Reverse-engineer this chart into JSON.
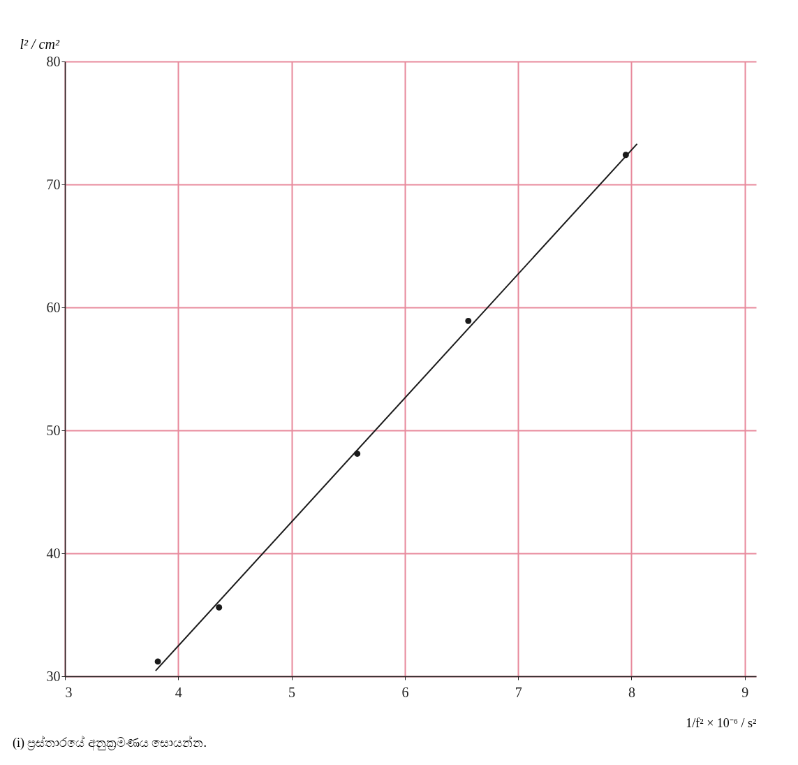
{
  "chart_data": {
    "type": "scatter",
    "xlabel": "1/f² × 10⁻⁶ / s²",
    "ylabel": "l² / cm²",
    "annotations": [
      "(i)  ප්‍රස්තාරයේ අනුක්‍රමණය සොයන්න."
    ],
    "xlim": [
      3,
      9.1
    ],
    "ylim": [
      30,
      80
    ],
    "xticks": [
      3,
      4,
      5,
      6,
      7,
      8,
      9
    ],
    "yticks": [
      30,
      40,
      50,
      60,
      70,
      80
    ],
    "grid": true,
    "series": [
      {
        "color": "#1a1a1a",
        "marker": "circle",
        "x": [
          3.82,
          4.36,
          5.58,
          6.56,
          7.95
        ],
        "values": [
          31.2,
          35.6,
          48.1,
          58.9,
          72.4
        ]
      },
      {
        "type": "line",
        "color": "#1a1a1a",
        "line_style": "solid",
        "x": [
          3.8,
          8.05
        ],
        "values": [
          30.45,
          73.3
        ]
      }
    ]
  }
}
